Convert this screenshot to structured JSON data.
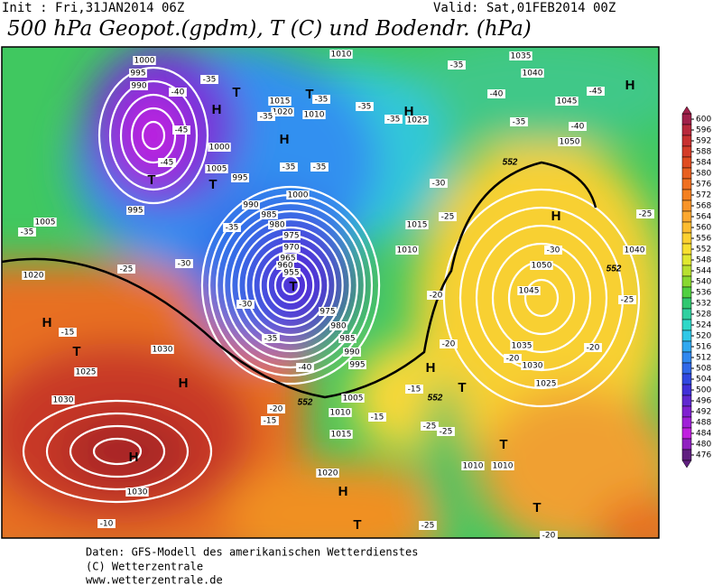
{
  "header": {
    "init": "Init : Fri,31JAN2014 06Z",
    "valid": "Valid: Sat,01FEB2014 00Z",
    "title": "500 hPa Geopot.(gpdm), T (C) und Bodendr. (hPa)"
  },
  "colorbar": {
    "ticks": [
      600,
      596,
      592,
      588,
      584,
      580,
      576,
      572,
      568,
      564,
      560,
      556,
      552,
      548,
      544,
      540,
      536,
      532,
      528,
      524,
      520,
      516,
      512,
      508,
      504,
      500,
      496,
      492,
      488,
      484,
      480,
      476
    ],
    "colors": [
      "#a0204a",
      "#b8283c",
      "#c83030",
      "#d43c28",
      "#e04c20",
      "#e86020",
      "#f07020",
      "#f48020",
      "#f89428",
      "#fca830",
      "#fcbc30",
      "#fcd030",
      "#f8e030",
      "#e0e830",
      "#b8e030",
      "#88d830",
      "#50d040",
      "#30c870",
      "#30d0a0",
      "#30d8c8",
      "#30c8e8",
      "#30a8f0",
      "#3088f0",
      "#3068e8",
      "#3048e0",
      "#4030d8",
      "#6028d0",
      "#8020d0",
      "#a020d8",
      "#c020e0",
      "#9020c0",
      "#602080"
    ]
  },
  "map": {
    "pressure_systems": [
      "H",
      "H",
      "H",
      "H",
      "H",
      "H",
      "H",
      "H",
      "H",
      "H",
      "T",
      "T",
      "T",
      "T",
      "T",
      "T",
      "T",
      "T",
      "T",
      "T"
    ],
    "contour_labels": [
      "1000",
      "995",
      "990",
      "1015",
      "1020",
      "1010",
      "1000",
      "1005",
      "995",
      "990",
      "985",
      "980",
      "975",
      "970",
      "965",
      "960",
      "955",
      "975",
      "980",
      "985",
      "990",
      "995",
      "1005",
      "1010",
      "1015",
      "1020",
      "1010",
      "1010",
      "1030",
      "1030",
      "1025",
      "1030",
      "1020",
      "1025",
      "1030",
      "1035",
      "1045",
      "1050",
      "1040",
      "1050",
      "1045",
      "1040",
      "1035",
      "1010",
      "1025",
      "1015",
      "1010",
      "1000",
      "995",
      "1005",
      "-35",
      "-40",
      "-45",
      "-45",
      "-35",
      "-25",
      "-30",
      "-35",
      "-35",
      "-35",
      "-35",
      "-35",
      "-35",
      "-35",
      "-35",
      "-40",
      "-35",
      "-45",
      "-40",
      "-30",
      "-25",
      "-30",
      "-20",
      "-20",
      "-20",
      "-25",
      "-25",
      "-20",
      "-15",
      "-15",
      "-15",
      "-15",
      "-20",
      "-25",
      "-25",
      "-25",
      "-20",
      "-10",
      "-30",
      "-35",
      "-40"
    ],
    "thickness_labels": [
      "552",
      "552",
      "552",
      "552"
    ]
  },
  "footer": {
    "line1": "Daten: GFS-Modell des amerikanischen Wetterdienstes",
    "line2": "(C) Wetterzentrale",
    "line3": "www.wetterzentrale.de"
  }
}
